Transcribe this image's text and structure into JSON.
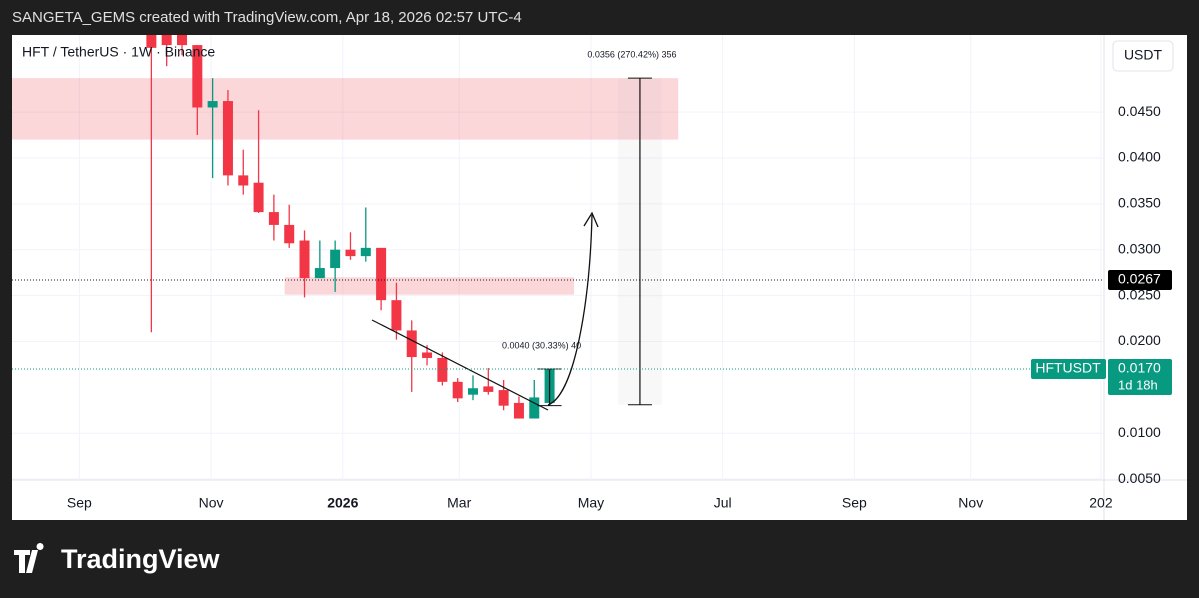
{
  "chart_data": {
    "type": "candlestick",
    "header": "SANGETA_GEMS created with TradingView.com, Apr 18, 2026 02:57 UTC-4",
    "title": "HFT / TetherUS · 1W · Binance",
    "currency": "USDT",
    "brand": "TradingView",
    "up_color": "#089981",
    "down_color": "#f23645",
    "grid": true,
    "x": [
      4.7,
      5.7,
      6.7,
      7.7,
      8.7,
      9.7,
      10.7,
      11.7,
      12.7,
      13.7,
      14.7,
      15.7,
      16.7,
      17.7,
      18.7,
      19.7,
      20.7,
      21.7,
      22.7,
      23.7,
      24.7,
      25.7,
      26.7,
      27.7,
      28.7,
      29.7,
      30.7
    ],
    "open": [
      0.06,
      0.056,
      0.056,
      0.0523,
      0.0455,
      0.0462,
      0.0381,
      0.0373,
      0.0341,
      0.0327,
      0.031,
      0.0269,
      0.028,
      0.03,
      0.0293,
      0.0302,
      0.0245,
      0.0212,
      0.0188,
      0.0182,
      0.0156,
      0.0142,
      0.0151,
      0.0147,
      0.0133,
      0.0116,
      0.0133
    ],
    "high": [
      0.07,
      0.058,
      0.058,
      0.0523,
      0.0487,
      0.0474,
      0.0409,
      0.0452,
      0.036,
      0.0349,
      0.0321,
      0.031,
      0.031,
      0.0319,
      0.0346,
      0.0302,
      0.0264,
      0.0223,
      0.0196,
      0.0188,
      0.016,
      0.0163,
      0.0171,
      0.0158,
      0.014,
      0.0158,
      0.017
    ],
    "low": [
      0.021,
      0.05,
      0.0512,
      0.0425,
      0.0378,
      0.037,
      0.036,
      0.034,
      0.031,
      0.0302,
      0.0248,
      0.0269,
      0.0254,
      0.0289,
      0.0287,
      0.0234,
      0.0202,
      0.0145,
      0.0174,
      0.0152,
      0.0134,
      0.0136,
      0.0142,
      0.0125,
      0.0116,
      0.0116,
      0.013
    ],
    "close": [
      0.052,
      0.0523,
      0.0523,
      0.0455,
      0.0462,
      0.0381,
      0.037,
      0.0341,
      0.0327,
      0.0307,
      0.0269,
      0.028,
      0.03,
      0.0293,
      0.0302,
      0.0245,
      0.0212,
      0.0183,
      0.0182,
      0.0156,
      0.0138,
      0.0149,
      0.0145,
      0.013,
      0.0116,
      0.0139,
      0.017
    ],
    "xlim": [
      -4.4,
      66.9
    ],
    "xticks": [
      {
        "value": 0,
        "label": "Sep"
      },
      {
        "value": 8.6,
        "label": "Nov"
      },
      {
        "value": 17.2,
        "label": "2026"
      },
      {
        "value": 24.8,
        "label": "Mar"
      },
      {
        "value": 33.4,
        "label": "May"
      },
      {
        "value": 42.0,
        "label": "Jul"
      },
      {
        "value": 50.6,
        "label": "Sep"
      },
      {
        "value": 58.2,
        "label": "Nov"
      },
      {
        "value": 66.7,
        "label": "202"
      }
    ],
    "ylim": [
      0.0049,
      0.0534
    ],
    "yticks": [
      {
        "value": 0.005,
        "label": "0.0050"
      },
      {
        "value": 0.01,
        "label": "0.0100"
      },
      {
        "value": 0.02,
        "label": "0.0200"
      },
      {
        "value": 0.025,
        "label": "0.0250"
      },
      {
        "value": 0.03,
        "label": "0.0300"
      },
      {
        "value": 0.035,
        "label": "0.0350"
      },
      {
        "value": 0.04,
        "label": "0.0400"
      },
      {
        "value": 0.045,
        "label": "0.0450"
      }
    ],
    "zones": [
      {
        "x": [
          -4.4,
          39.1
        ],
        "y": [
          0.042,
          0.0487
        ]
      },
      {
        "x": [
          13.4,
          32.3
        ],
        "y": [
          0.0251,
          0.027
        ]
      }
    ],
    "measures": [
      {
        "x": 36.6,
        "from": 0.0131,
        "to": 0.0487,
        "label": "0.0356 (270.42%) 356"
      },
      {
        "x": 30.7,
        "from": 0.013,
        "to": 0.017,
        "label": "0.0040 (30.33%) 40"
      }
    ],
    "price_lines": [
      {
        "value": 0.0267,
        "label": "0.0267"
      },
      {
        "value": 0.017,
        "label": "0.0170",
        "symbol": "HFTUSDT",
        "countdown": "1d 18h"
      }
    ]
  }
}
